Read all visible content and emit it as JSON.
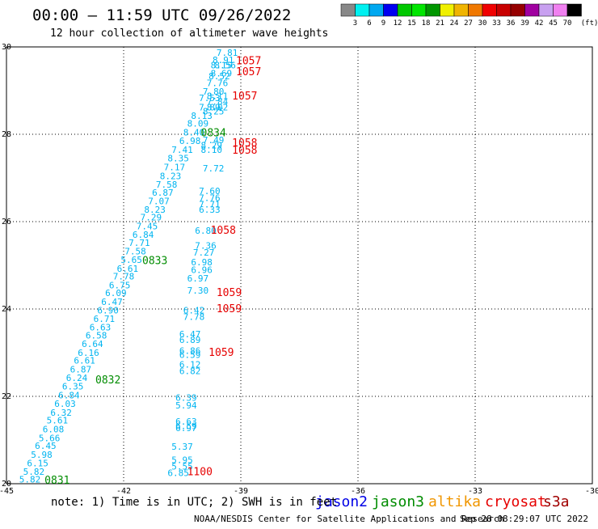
{
  "title": "00:00 — 11:59 UTC 09/26/2022",
  "subtitle": "12 hour collection of altimeter wave heights",
  "note": "note: 1) Time is in UTC; 2) SWH is in feet",
  "footer_left": "NOAA/NESDIS Center for Satellite Applications and Research",
  "footer_right": "Sep 28 08:29:07 UTC 2022",
  "colorbar": {
    "unit_label": "(ft)",
    "ticks": [
      "3",
      "6",
      "9",
      "12",
      "15",
      "18",
      "21",
      "24",
      "27",
      "30",
      "33",
      "36",
      "39",
      "42",
      "45",
      "70"
    ],
    "colors": [
      "#888888",
      "#00f0f0",
      "#00a8f0",
      "#0000f0",
      "#00c800",
      "#00e600",
      "#009600",
      "#f0f000",
      "#f0b400",
      "#f07800",
      "#f00000",
      "#c80000",
      "#960000",
      "#a000a0",
      "#c8a0f0",
      "#f080f0",
      "#000000"
    ]
  },
  "legend": [
    {
      "label": "jason2",
      "color": "#0000e6"
    },
    {
      "label": "jason3",
      "color": "#008c00"
    },
    {
      "label": "altika",
      "color": "#f09600"
    },
    {
      "label": "cryosat",
      "color": "#e60000"
    },
    {
      "label": "s3a",
      "color": "#a00000"
    }
  ],
  "chart_data": {
    "type": "scatter",
    "title": "00:00 — 11:59 UTC 09/26/2022",
    "xlim": [
      -45,
      -30
    ],
    "ylim": [
      20,
      30
    ],
    "xticks": [
      -45,
      -42,
      -39,
      -36,
      -33,
      -30
    ],
    "yticks": [
      20,
      22,
      24,
      26,
      28,
      30
    ],
    "xtick_labels": [
      "-45",
      "-42",
      "-39",
      "-36",
      "-33",
      "-30"
    ],
    "ytick_labels": [
      "20",
      "22",
      "24",
      "26",
      "28",
      "30"
    ],
    "grid": true,
    "series": [
      {
        "name": "swh",
        "color": "#00b4f0",
        "points": [
          {
            "x": -39.35,
            "y": 29.87,
            "label": "7.81"
          },
          {
            "x": -39.45,
            "y": 29.7,
            "label": "8.91"
          },
          {
            "x": -39.5,
            "y": 29.58,
            "label": "8.15"
          },
          {
            "x": -39.4,
            "y": 29.58,
            "label": "8.56"
          },
          {
            "x": -39.5,
            "y": 29.4,
            "label": "8.69"
          },
          {
            "x": -39.55,
            "y": 29.33,
            "label": "8.52"
          },
          {
            "x": -39.6,
            "y": 29.18,
            "label": "7.76"
          },
          {
            "x": -39.7,
            "y": 28.98,
            "label": "7.80"
          },
          {
            "x": -39.6,
            "y": 28.88,
            "label": "8.11"
          },
          {
            "x": -39.8,
            "y": 28.83,
            "label": "7.53"
          },
          {
            "x": -39.6,
            "y": 28.75,
            "label": "7.84"
          },
          {
            "x": -39.8,
            "y": 28.62,
            "label": "7.89"
          },
          {
            "x": -39.6,
            "y": 28.62,
            "label": "8.02"
          },
          {
            "x": -39.7,
            "y": 28.53,
            "label": "8.25"
          },
          {
            "x": -40.0,
            "y": 28.43,
            "label": "8.13"
          },
          {
            "x": -40.1,
            "y": 28.25,
            "label": "8.09"
          },
          {
            "x": -40.2,
            "y": 28.05,
            "label": "8.40"
          },
          {
            "x": -40.3,
            "y": 27.85,
            "label": "6.98"
          },
          {
            "x": -39.7,
            "y": 27.87,
            "label": "7.49"
          },
          {
            "x": -39.75,
            "y": 27.75,
            "label": "8.29"
          },
          {
            "x": -39.75,
            "y": 27.65,
            "label": "8.10"
          },
          {
            "x": -40.5,
            "y": 27.65,
            "label": "7.41"
          },
          {
            "x": -40.6,
            "y": 27.45,
            "label": "8.35"
          },
          {
            "x": -40.7,
            "y": 27.25,
            "label": "7.17"
          },
          {
            "x": -39.7,
            "y": 27.22,
            "label": "7.72"
          },
          {
            "x": -40.8,
            "y": 27.05,
            "label": "8.23"
          },
          {
            "x": -40.9,
            "y": 26.85,
            "label": "7.58"
          },
          {
            "x": -41.0,
            "y": 26.67,
            "label": "6.87"
          },
          {
            "x": -39.8,
            "y": 26.7,
            "label": "7.60"
          },
          {
            "x": -39.8,
            "y": 26.55,
            "label": "7.76"
          },
          {
            "x": -41.1,
            "y": 26.47,
            "label": "7.07"
          },
          {
            "x": -39.8,
            "y": 26.4,
            "label": "7.71"
          },
          {
            "x": -39.8,
            "y": 26.28,
            "label": "6.33"
          },
          {
            "x": -41.2,
            "y": 26.28,
            "label": "8.23"
          },
          {
            "x": -41.3,
            "y": 26.1,
            "label": "7.29"
          },
          {
            "x": -41.4,
            "y": 25.9,
            "label": "7.45"
          },
          {
            "x": -39.9,
            "y": 25.8,
            "label": "6.80"
          },
          {
            "x": -41.5,
            "y": 25.7,
            "label": "6.84"
          },
          {
            "x": -39.9,
            "y": 25.45,
            "label": "7.36"
          },
          {
            "x": -41.6,
            "y": 25.52,
            "label": "7.71"
          },
          {
            "x": -41.7,
            "y": 25.32,
            "label": "7.58"
          },
          {
            "x": -39.95,
            "y": 25.3,
            "label": "7.27"
          },
          {
            "x": -41.8,
            "y": 25.13,
            "label": "5.65"
          },
          {
            "x": -40.0,
            "y": 25.07,
            "label": "6.98"
          },
          {
            "x": -41.9,
            "y": 24.93,
            "label": "6.61"
          },
          {
            "x": -40.0,
            "y": 24.9,
            "label": "6.96"
          },
          {
            "x": -42.0,
            "y": 24.75,
            "label": "7.78"
          },
          {
            "x": -40.1,
            "y": 24.7,
            "label": "6.97"
          },
          {
            "x": -42.1,
            "y": 24.55,
            "label": "6.75"
          },
          {
            "x": -40.1,
            "y": 24.43,
            "label": "7.30"
          },
          {
            "x": -42.2,
            "y": 24.37,
            "label": "6.09"
          },
          {
            "x": -42.3,
            "y": 24.17,
            "label": "6.47"
          },
          {
            "x": -40.2,
            "y": 23.97,
            "label": "6.42"
          },
          {
            "x": -42.4,
            "y": 23.97,
            "label": "6.90"
          },
          {
            "x": -40.2,
            "y": 23.82,
            "label": "7.78"
          },
          {
            "x": -42.5,
            "y": 23.78,
            "label": "6.71"
          },
          {
            "x": -42.6,
            "y": 23.58,
            "label": "6.63"
          },
          {
            "x": -40.3,
            "y": 23.43,
            "label": "6.47"
          },
          {
            "x": -42.7,
            "y": 23.4,
            "label": "6.58"
          },
          {
            "x": -40.3,
            "y": 23.3,
            "label": "6.89"
          },
          {
            "x": -42.8,
            "y": 23.2,
            "label": "6.64"
          },
          {
            "x": -40.3,
            "y": 23.05,
            "label": "6.86"
          },
          {
            "x": -42.9,
            "y": 23.0,
            "label": "6.16"
          },
          {
            "x": -40.3,
            "y": 22.95,
            "label": "6.59"
          },
          {
            "x": -43.0,
            "y": 22.82,
            "label": "6.61"
          },
          {
            "x": -40.3,
            "y": 22.73,
            "label": "6.12"
          },
          {
            "x": -43.1,
            "y": 22.62,
            "label": "6.87"
          },
          {
            "x": -40.3,
            "y": 22.58,
            "label": "6.82"
          },
          {
            "x": -43.2,
            "y": 22.43,
            "label": "6.24"
          },
          {
            "x": -43.3,
            "y": 22.23,
            "label": "6.35"
          },
          {
            "x": -43.4,
            "y": 22.03,
            "label": "6.84"
          },
          {
            "x": -40.4,
            "y": 21.97,
            "label": "6.39"
          },
          {
            "x": -43.5,
            "y": 21.83,
            "label": "6.03"
          },
          {
            "x": -40.4,
            "y": 21.8,
            "label": "5.94"
          },
          {
            "x": -43.6,
            "y": 21.63,
            "label": "6.32"
          },
          {
            "x": -43.7,
            "y": 21.45,
            "label": "5.61"
          },
          {
            "x": -40.4,
            "y": 21.43,
            "label": "6.63"
          },
          {
            "x": -40.4,
            "y": 21.32,
            "label": "6.59"
          },
          {
            "x": -40.4,
            "y": 21.28,
            "label": "6.97"
          },
          {
            "x": -43.8,
            "y": 21.25,
            "label": "6.08"
          },
          {
            "x": -43.9,
            "y": 21.05,
            "label": "5.66"
          },
          {
            "x": -44.0,
            "y": 20.87,
            "label": "6.45"
          },
          {
            "x": -40.5,
            "y": 20.85,
            "label": "5.37"
          },
          {
            "x": -44.1,
            "y": 20.67,
            "label": "5.98"
          },
          {
            "x": -40.5,
            "y": 20.55,
            "label": "5.95"
          },
          {
            "x": -44.2,
            "y": 20.47,
            "label": "6.15"
          },
          {
            "x": -40.5,
            "y": 20.4,
            "label": "5.55"
          },
          {
            "x": -44.3,
            "y": 20.28,
            "label": "5.82"
          },
          {
            "x": -40.6,
            "y": 20.25,
            "label": "6.85"
          },
          {
            "x": -44.4,
            "y": 20.1,
            "label": "5.82"
          }
        ]
      },
      {
        "name": "jason3",
        "color": "#008c00",
        "points": [
          {
            "x": -39.7,
            "y": 28.03,
            "label": "0834"
          },
          {
            "x": -41.2,
            "y": 25.1,
            "label": "0833"
          },
          {
            "x": -42.4,
            "y": 22.37,
            "label": "0832"
          },
          {
            "x": -43.7,
            "y": 20.07,
            "label": "0831"
          }
        ]
      },
      {
        "name": "cryosat",
        "color": "#e60000",
        "points": [
          {
            "x": -38.8,
            "y": 29.68,
            "label": "1057"
          },
          {
            "x": -38.8,
            "y": 29.43,
            "label": "1057"
          },
          {
            "x": -38.9,
            "y": 28.87,
            "label": "1057"
          },
          {
            "x": -38.9,
            "y": 27.8,
            "label": "1058"
          },
          {
            "x": -38.9,
            "y": 27.63,
            "label": "1058"
          },
          {
            "x": -39.45,
            "y": 25.8,
            "label": "1058"
          },
          {
            "x": -39.3,
            "y": 24.37,
            "label": "1059"
          },
          {
            "x": -39.3,
            "y": 24.0,
            "label": "1059"
          },
          {
            "x": -39.5,
            "y": 23.0,
            "label": "1059"
          },
          {
            "x": -40.05,
            "y": 20.27,
            "label": "1100"
          }
        ]
      }
    ]
  }
}
